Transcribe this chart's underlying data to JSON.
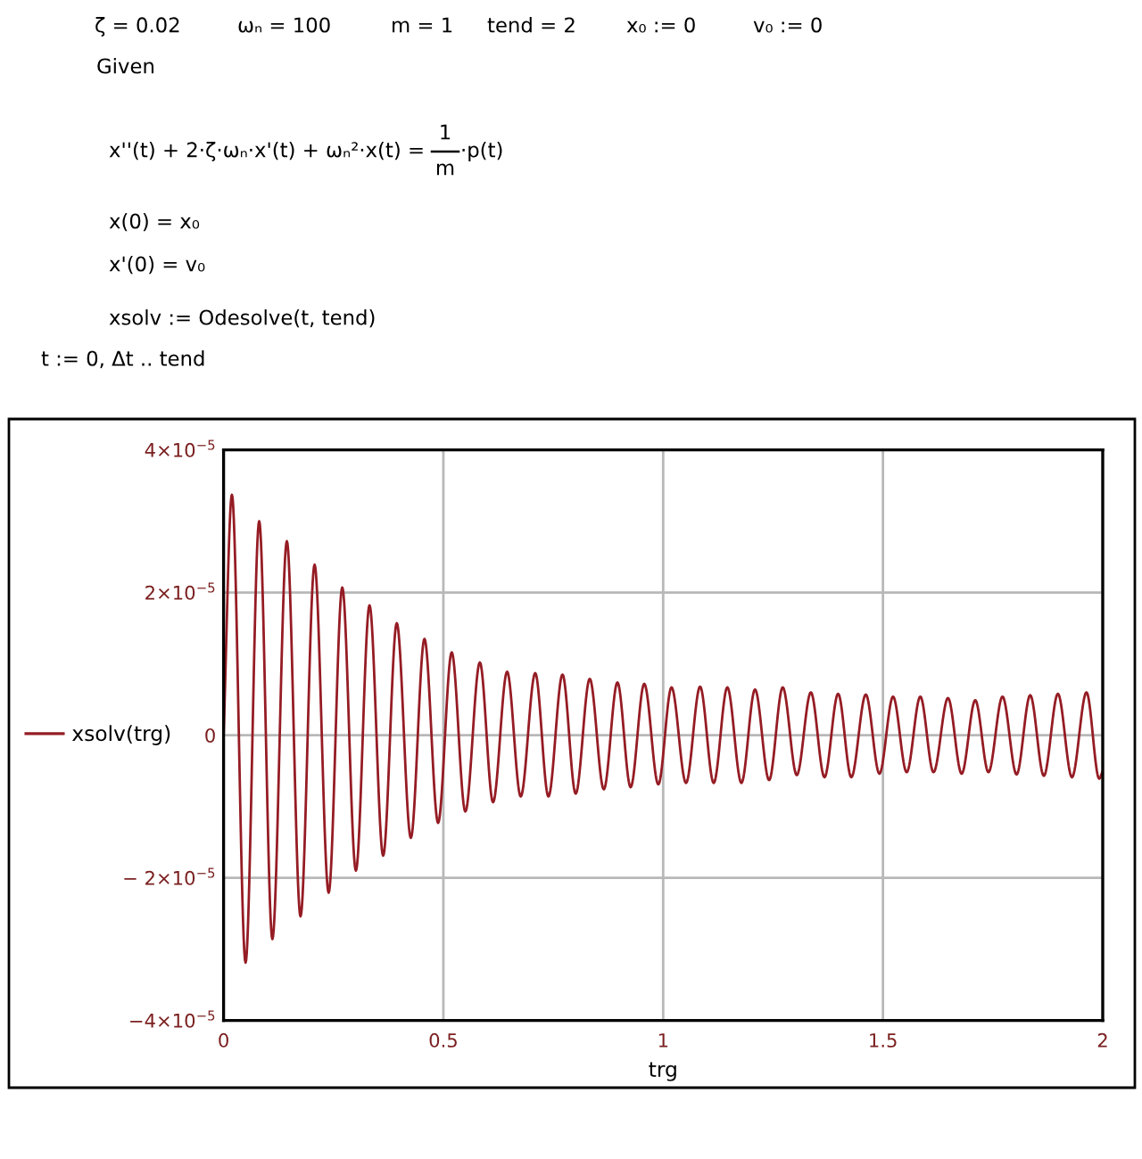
{
  "chart_data": {
    "type": "line",
    "annotations": [
      "ζ = 0.02",
      "ωₙ = 100",
      "m = 1",
      "tend = 2",
      "x₀ := 0",
      "v₀ := 0",
      "Given",
      "x''(t) + 2·ζ·ωₙ·x'(t) + ωₙ²·x(t) =",
      "1",
      "m",
      "·p(t)",
      "x(0) = x₀",
      "x'(0) = v₀",
      "xsolv := Odesolve(t, tend)",
      "t := 0, Δt .. tend"
    ],
    "xlabel": "trg",
    "x": [
      0,
      0.019,
      0.05,
      0.081,
      0.111,
      0.144,
      0.175,
      0.207,
      0.239,
      0.27,
      0.301,
      0.332,
      0.363,
      0.394,
      0.426,
      0.457,
      0.488,
      0.519,
      0.55,
      0.583,
      0.613,
      0.645,
      0.676,
      0.709,
      0.739,
      0.771,
      0.801,
      0.833,
      0.865,
      0.896,
      0.926,
      0.957,
      0.989,
      1.019,
      1.052,
      1.084,
      1.115,
      1.146,
      1.178,
      1.209,
      1.241,
      1.272,
      1.304,
      1.336,
      1.367,
      1.398,
      1.428,
      1.461,
      1.492,
      1.523,
      1.554,
      1.585,
      1.615,
      1.648,
      1.679,
      1.71,
      1.74,
      1.772,
      1.804,
      1.835,
      1.866,
      1.898,
      1.93,
      1.963,
      1.992,
      2
    ],
    "series": [
      {
        "name": "xsolv(trg)",
        "color": "#951c24",
        "values": [
          0,
          3.37e-05,
          -3.19e-05,
          3e-05,
          -2.86e-05,
          2.72e-05,
          -2.54e-05,
          2.39e-05,
          -2.21e-05,
          2.07e-05,
          -1.9e-05,
          1.82e-05,
          -1.69e-05,
          1.57e-05,
          -1.44e-05,
          1.35e-05,
          -1.23e-05,
          1.16e-05,
          -1.07e-05,
          1.02e-05,
          -9.4e-06,
          8.9e-06,
          -8.6e-06,
          8.7e-06,
          -8.6e-06,
          8.5e-06,
          -8.2e-06,
          7.9e-06,
          -7.6e-06,
          7.4e-06,
          -7.3e-06,
          7.2e-06,
          -6.9e-06,
          6.7e-06,
          -6.7e-06,
          6.8e-06,
          -6.7e-06,
          6.7e-06,
          -6.7e-06,
          6.4e-06,
          -6.3e-06,
          6.7e-06,
          -5.6e-06,
          6e-06,
          -5.9e-06,
          5.8e-06,
          -5.9e-06,
          5.7e-06,
          -5.4e-06,
          5.4e-06,
          -5.2e-06,
          5.4e-06,
          -5.2e-06,
          5.2e-06,
          -5.4e-06,
          4.9e-06,
          -5.2e-06,
          5.4e-06,
          -5.5e-06,
          5.6e-06,
          -5.7e-06,
          5.8e-06,
          -5.9e-06,
          6e-06,
          -6.1e-06,
          -5e-06
        ]
      }
    ],
    "xlim": [
      0,
      2
    ],
    "xticks": [
      0,
      0.5,
      1,
      1.5,
      2
    ],
    "ylim": [
      -4e-05,
      4e-05
    ],
    "yticks": [
      {
        "value": -4e-05,
        "label": "−4×10$^{−5}$"
      },
      {
        "value": -2e-05,
        "label": "− 2×10$^{−5}$"
      },
      0,
      {
        "value": 2e-05,
        "label": "2×10$^{−5}$"
      },
      {
        "value": 4e-05,
        "label": "4×10$^{−5}$"
      }
    ],
    "grid": true,
    "legend": "left"
  }
}
